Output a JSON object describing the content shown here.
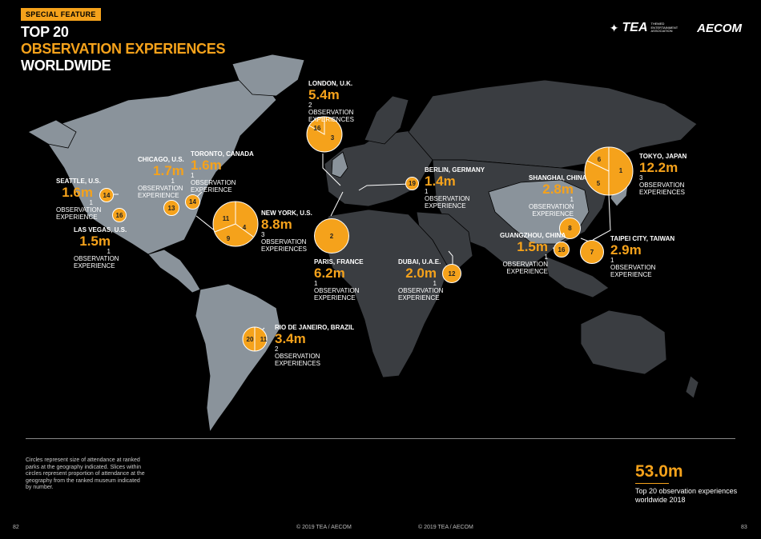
{
  "header": {
    "badge": "SPECIAL FEATURE",
    "title_line1": "TOP 20",
    "title_line2": "OBSERVATION EXPERIENCES",
    "title_line3": "WORLDWIDE"
  },
  "logos": {
    "tea": "TEA",
    "tea_sub1": "THEMED",
    "tea_sub2": "ENTERTAINMENT",
    "tea_sub3": "ASSOCIATION",
    "aecom": "AECOM"
  },
  "cities": {
    "london": {
      "name": "LONDON, U.K.",
      "value": "5.4m",
      "sub": "2 OBSERVATION EXPERIENCES",
      "ranks": [
        "16",
        "3"
      ]
    },
    "tokyo": {
      "name": "TOKYO, JAPAN",
      "value": "12.2m",
      "sub": "3 OBSERVATION EXPERIENCES",
      "ranks": [
        "6",
        "1",
        "5"
      ]
    },
    "chicago": {
      "name": "CHICAGO, U.S.",
      "value": "1.7m",
      "sub": "1 OBSERVATION EXPERIENCE",
      "ranks": [
        "13"
      ]
    },
    "toronto": {
      "name": "TORONTO, CANADA",
      "value": "1.6m",
      "sub": "1 OBSERVATION EXPERIENCE",
      "ranks": [
        "14"
      ]
    },
    "seattle": {
      "name": "SEATTLE, U.S.",
      "value": "1.6m",
      "sub": "1 OBSERVATION EXPERIENCE",
      "ranks": [
        "14"
      ]
    },
    "lasvegas": {
      "name": "LAS VEGAS, U.S.",
      "value": "1.5m",
      "sub": "1 OBSERVATION EXPERIENCE",
      "ranks": [
        "16"
      ]
    },
    "newyork": {
      "name": "NEW YORK, U.S.",
      "value": "8.8m",
      "sub": "3 OBSERVATION EXPERIENCES",
      "ranks": [
        "11",
        "4",
        "9"
      ]
    },
    "berlin": {
      "name": "BERLIN, GERMANY",
      "value": "1.4m",
      "sub": "1 OBSERVATION EXPERIENCE",
      "ranks": [
        "19"
      ]
    },
    "shanghai": {
      "name": "SHANGHAI, CHINA",
      "value": "2.8m",
      "sub": "1 OBSERVATION EXPERIENCE",
      "ranks": [
        "8"
      ]
    },
    "guangzhou": {
      "name": "GUANGZHOU, CHINA",
      "value": "1.5m",
      "sub": "1 OBSERVATION EXPERIENCE",
      "ranks": [
        "16"
      ]
    },
    "taipei": {
      "name": "TAIPEI CITY, TAIWAN",
      "value": "2.9m",
      "sub": "1 OBSERVATION EXPERIENCE",
      "ranks": [
        "7"
      ]
    },
    "paris": {
      "name": "PARIS, FRANCE",
      "value": "6.2m",
      "sub": "1 OBSERVATION EXPERIENCE",
      "ranks": [
        "2"
      ]
    },
    "dubai": {
      "name": "DUBAI, U.A.E.",
      "value": "2.0m",
      "sub": "1 OBSERVATION EXPERIENCE",
      "ranks": [
        "12"
      ]
    },
    "rio": {
      "name": "RIO DE JANEIRO, BRAZIL",
      "value": "3.4m",
      "sub": "2 OBSERVATION EXPERIENCES",
      "ranks": [
        "20",
        "11"
      ]
    }
  },
  "note": "Circles represent size of attendance at ranked parks at the geography indicated. Slices within circles represent proportion of attendance at the geography from the ranked museum indicated by number.",
  "total": {
    "value": "53.0m",
    "caption": "Top 20 observation experiences worldwide 2018"
  },
  "footer": {
    "page_left": "82",
    "copy_left": "© 2019 TEA / AECOM",
    "copy_right": "© 2019 TEA / AECOM",
    "page_right": "83"
  },
  "colors": {
    "accent": "#f5a21b",
    "land_light": "#8a939b",
    "land_dark": "#3a3d41",
    "background": "#000000"
  }
}
